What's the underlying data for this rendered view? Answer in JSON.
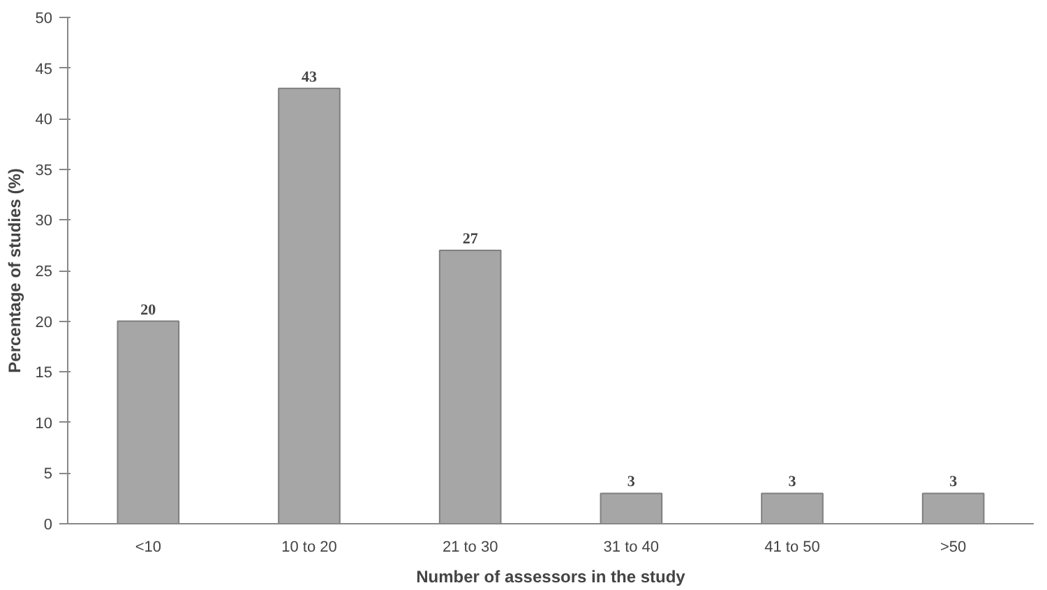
{
  "chart_data": {
    "type": "bar",
    "xlabel": "Number of assessors in the study",
    "ylabel": "Percentage of studies (%)",
    "categories": [
      "<10",
      "10 to 20",
      "21 to 30",
      "31 to 40",
      "41 to 50",
      ">50"
    ],
    "values": [
      20,
      43,
      27,
      3,
      3,
      3
    ],
    "color": "#a6a6a6",
    "ylim": [
      0,
      50
    ],
    "yticks": [
      0,
      5,
      10,
      15,
      20,
      25,
      30,
      35,
      40,
      45,
      50
    ],
    "grid": false,
    "data_labels": true
  }
}
